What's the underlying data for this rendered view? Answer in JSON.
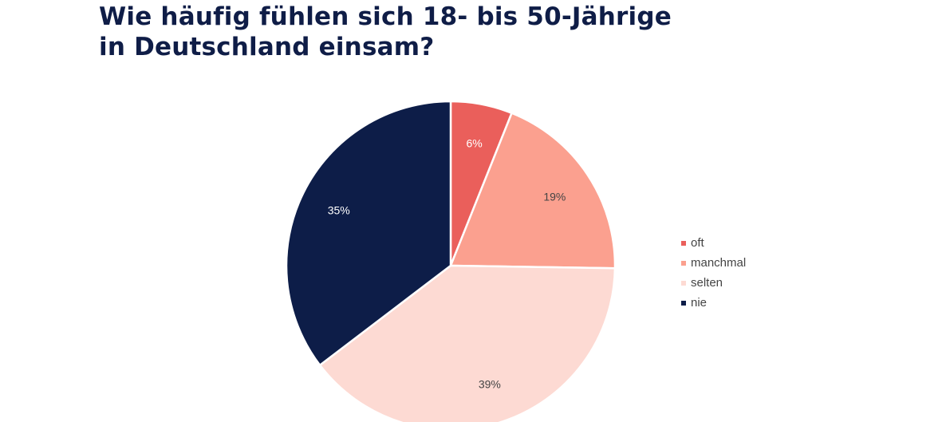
{
  "chart_data": {
    "type": "pie",
    "title": [
      "Wie häufig fühlen sich 18- bis 50-Jährige",
      "in Deutschland einsam?"
    ],
    "categories": [
      "oft",
      "manchmal",
      "selten",
      "nie"
    ],
    "values": [
      6,
      19,
      39,
      35
    ],
    "labels": [
      "6%",
      "19%",
      "39%",
      "35%"
    ],
    "colors": [
      "#ea5f5b",
      "#fba08f",
      "#fddad3",
      "#0d1d48"
    ],
    "label_colors": [
      "#ffffff",
      "#444444",
      "#444444",
      "#ffffff"
    ],
    "start_angle": "12 o'clock",
    "direction": "clockwise",
    "legend_position": "right"
  }
}
